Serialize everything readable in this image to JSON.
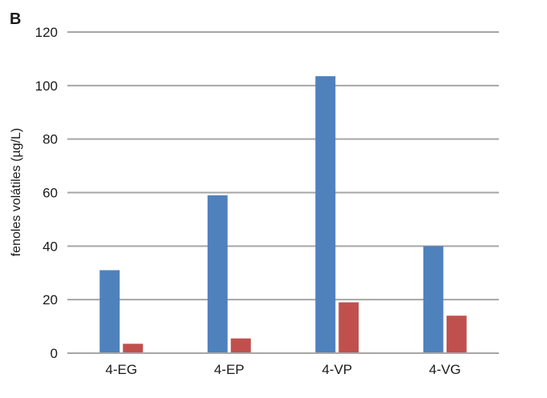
{
  "panel_label": "B",
  "chart_data": {
    "type": "bar",
    "title": "",
    "xlabel": "",
    "ylabel": "fenoles volátiles (µg/L)",
    "ylim": [
      0,
      120
    ],
    "yticks": [
      0,
      20,
      40,
      60,
      80,
      100,
      120
    ],
    "grid": true,
    "legend": "none",
    "categories": [
      "4-EG",
      "4-EP",
      "4-VP",
      "4-VG"
    ],
    "series": [
      {
        "values": [
          31,
          59,
          103.5,
          40
        ],
        "color": "#4f81bd"
      },
      {
        "values": [
          3.5,
          5.5,
          19,
          14
        ],
        "color": "#c0504d"
      }
    ]
  }
}
